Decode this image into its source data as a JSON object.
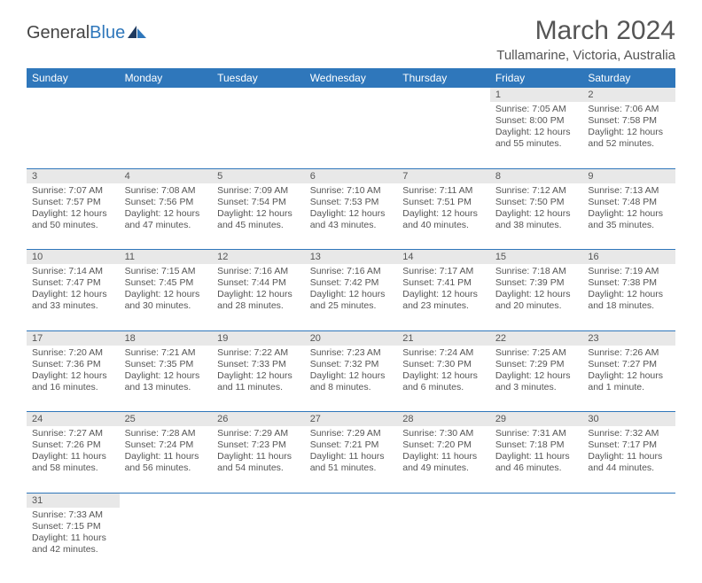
{
  "logo": {
    "first": "General",
    "second": "Blue"
  },
  "title": "March 2024",
  "location": "Tullamarine, Victoria, Australia",
  "colors": {
    "header_bg": "#2f77bb",
    "header_fg": "#ffffff",
    "daynum_bg": "#e8e8e8",
    "rule": "#2f77bb",
    "text": "#555555",
    "logo_accent": "#2f77bb"
  },
  "dayNames": [
    "Sunday",
    "Monday",
    "Tuesday",
    "Wednesday",
    "Thursday",
    "Friday",
    "Saturday"
  ],
  "weeks": [
    [
      null,
      null,
      null,
      null,
      null,
      {
        "n": "1",
        "sr": "7:05 AM",
        "ss": "8:00 PM",
        "dl": "12 hours and 55 minutes."
      },
      {
        "n": "2",
        "sr": "7:06 AM",
        "ss": "7:58 PM",
        "dl": "12 hours and 52 minutes."
      }
    ],
    [
      {
        "n": "3",
        "sr": "7:07 AM",
        "ss": "7:57 PM",
        "dl": "12 hours and 50 minutes."
      },
      {
        "n": "4",
        "sr": "7:08 AM",
        "ss": "7:56 PM",
        "dl": "12 hours and 47 minutes."
      },
      {
        "n": "5",
        "sr": "7:09 AM",
        "ss": "7:54 PM",
        "dl": "12 hours and 45 minutes."
      },
      {
        "n": "6",
        "sr": "7:10 AM",
        "ss": "7:53 PM",
        "dl": "12 hours and 43 minutes."
      },
      {
        "n": "7",
        "sr": "7:11 AM",
        "ss": "7:51 PM",
        "dl": "12 hours and 40 minutes."
      },
      {
        "n": "8",
        "sr": "7:12 AM",
        "ss": "7:50 PM",
        "dl": "12 hours and 38 minutes."
      },
      {
        "n": "9",
        "sr": "7:13 AM",
        "ss": "7:48 PM",
        "dl": "12 hours and 35 minutes."
      }
    ],
    [
      {
        "n": "10",
        "sr": "7:14 AM",
        "ss": "7:47 PM",
        "dl": "12 hours and 33 minutes."
      },
      {
        "n": "11",
        "sr": "7:15 AM",
        "ss": "7:45 PM",
        "dl": "12 hours and 30 minutes."
      },
      {
        "n": "12",
        "sr": "7:16 AM",
        "ss": "7:44 PM",
        "dl": "12 hours and 28 minutes."
      },
      {
        "n": "13",
        "sr": "7:16 AM",
        "ss": "7:42 PM",
        "dl": "12 hours and 25 minutes."
      },
      {
        "n": "14",
        "sr": "7:17 AM",
        "ss": "7:41 PM",
        "dl": "12 hours and 23 minutes."
      },
      {
        "n": "15",
        "sr": "7:18 AM",
        "ss": "7:39 PM",
        "dl": "12 hours and 20 minutes."
      },
      {
        "n": "16",
        "sr": "7:19 AM",
        "ss": "7:38 PM",
        "dl": "12 hours and 18 minutes."
      }
    ],
    [
      {
        "n": "17",
        "sr": "7:20 AM",
        "ss": "7:36 PM",
        "dl": "12 hours and 16 minutes."
      },
      {
        "n": "18",
        "sr": "7:21 AM",
        "ss": "7:35 PM",
        "dl": "12 hours and 13 minutes."
      },
      {
        "n": "19",
        "sr": "7:22 AM",
        "ss": "7:33 PM",
        "dl": "12 hours and 11 minutes."
      },
      {
        "n": "20",
        "sr": "7:23 AM",
        "ss": "7:32 PM",
        "dl": "12 hours and 8 minutes."
      },
      {
        "n": "21",
        "sr": "7:24 AM",
        "ss": "7:30 PM",
        "dl": "12 hours and 6 minutes."
      },
      {
        "n": "22",
        "sr": "7:25 AM",
        "ss": "7:29 PM",
        "dl": "12 hours and 3 minutes."
      },
      {
        "n": "23",
        "sr": "7:26 AM",
        "ss": "7:27 PM",
        "dl": "12 hours and 1 minute."
      }
    ],
    [
      {
        "n": "24",
        "sr": "7:27 AM",
        "ss": "7:26 PM",
        "dl": "11 hours and 58 minutes."
      },
      {
        "n": "25",
        "sr": "7:28 AM",
        "ss": "7:24 PM",
        "dl": "11 hours and 56 minutes."
      },
      {
        "n": "26",
        "sr": "7:29 AM",
        "ss": "7:23 PM",
        "dl": "11 hours and 54 minutes."
      },
      {
        "n": "27",
        "sr": "7:29 AM",
        "ss": "7:21 PM",
        "dl": "11 hours and 51 minutes."
      },
      {
        "n": "28",
        "sr": "7:30 AM",
        "ss": "7:20 PM",
        "dl": "11 hours and 49 minutes."
      },
      {
        "n": "29",
        "sr": "7:31 AM",
        "ss": "7:18 PM",
        "dl": "11 hours and 46 minutes."
      },
      {
        "n": "30",
        "sr": "7:32 AM",
        "ss": "7:17 PM",
        "dl": "11 hours and 44 minutes."
      }
    ],
    [
      {
        "n": "31",
        "sr": "7:33 AM",
        "ss": "7:15 PM",
        "dl": "11 hours and 42 minutes."
      },
      null,
      null,
      null,
      null,
      null,
      null
    ]
  ],
  "labels": {
    "sunrise": "Sunrise:",
    "sunset": "Sunset:",
    "daylight": "Daylight:"
  }
}
